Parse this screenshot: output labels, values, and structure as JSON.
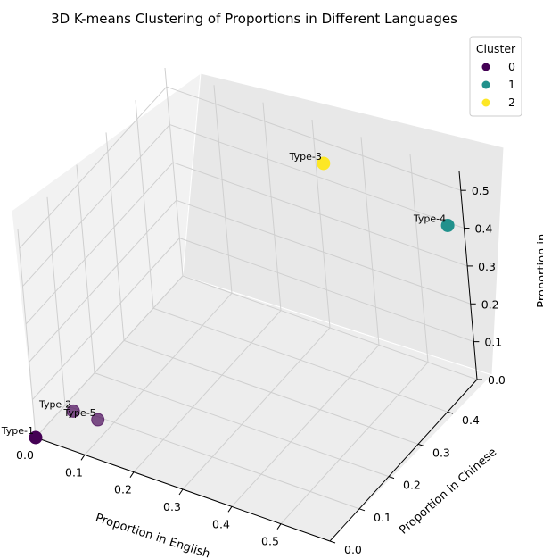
{
  "chart_data": {
    "type": "scatter",
    "title": "3D K-means Clustering of Proportions in Different Languages",
    "xlabel": "Proportion in English",
    "ylabel": "Proportion in Chinese",
    "zlabel": "Proportion in ...",
    "x_ticks": [
      "0.0",
      "0.1",
      "0.2",
      "0.3",
      "0.4",
      "0.5"
    ],
    "y_ticks": [
      "0.0",
      "0.1",
      "0.2",
      "0.3",
      "0.4"
    ],
    "z_ticks": [
      "0.0",
      "0.1",
      "0.2",
      "0.3",
      "0.4",
      "0.5"
    ],
    "grid": true,
    "legend": {
      "title": "Cluster",
      "position": "top-right",
      "entries": [
        {
          "label": "0",
          "color": "#440154"
        },
        {
          "label": "1",
          "color": "#21918c"
        },
        {
          "label": "2",
          "color": "#fde725"
        }
      ]
    },
    "points": [
      {
        "label": "Type-1",
        "cluster": 0,
        "x": 0.0,
        "y": 0.0,
        "z": 0.0
      },
      {
        "label": "Type-2",
        "cluster": 0,
        "x": 0.05,
        "y": 0.05,
        "z": 0.05
      },
      {
        "label": "Type-5",
        "cluster": 0,
        "x": 0.1,
        "y": 0.05,
        "z": 0.05
      },
      {
        "label": "Type-3",
        "cluster": 2,
        "x": 0.35,
        "y": 0.45,
        "z": 0.5
      },
      {
        "label": "Type-4",
        "cluster": 1,
        "x": 0.6,
        "y": 0.45,
        "z": 0.45
      }
    ]
  }
}
